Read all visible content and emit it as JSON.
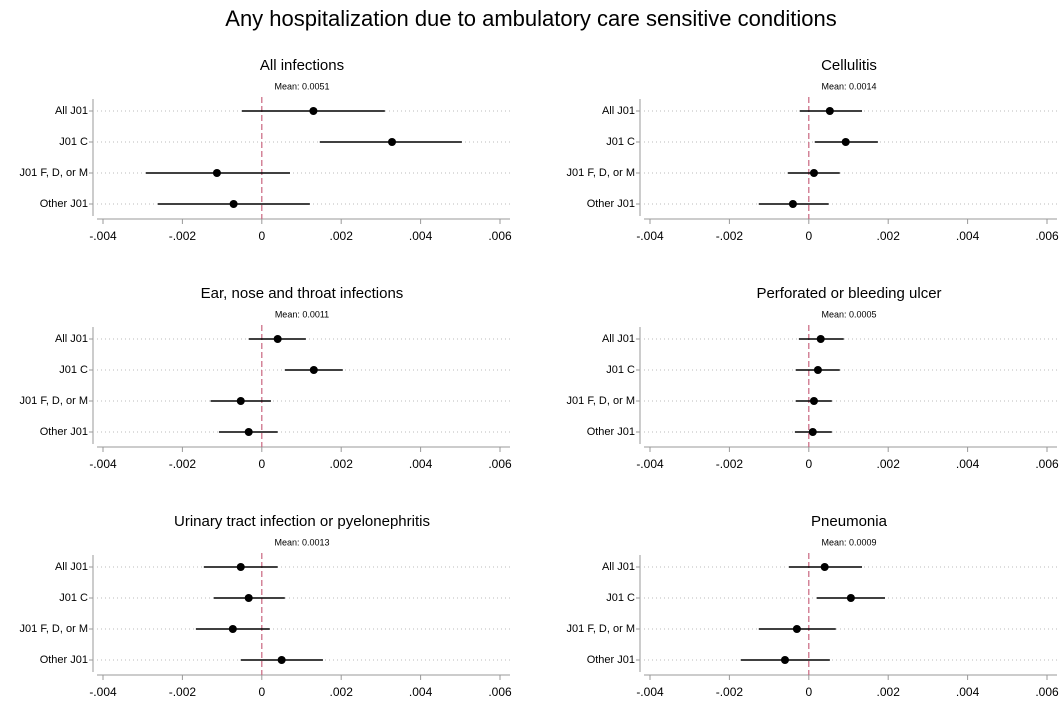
{
  "title": "Any hospitalization due to ambulatory care sensitive conditions",
  "chart_data": [
    {
      "type": "coefplot",
      "title": "All infections",
      "subtitle": "Mean: 0.0051",
      "categories": [
        "All J01",
        "J01 C",
        "J01 F, D, or M",
        "Other J01"
      ],
      "values": [
        0.0013,
        0.00328,
        -0.00113,
        -0.00071
      ],
      "low": [
        -0.0005,
        0.00146,
        -0.00292,
        -0.00262
      ],
      "high": [
        0.0031,
        0.00504,
        0.00071,
        0.00121
      ],
      "color": "#000000",
      "xline": 0,
      "xline_color": "#c9657f",
      "grid": true,
      "xlim": [
        -0.004,
        0.006
      ],
      "xticks": [
        {
          "value": -0.004,
          "label": "-.004"
        },
        {
          "value": -0.002,
          "label": "-.002"
        },
        0,
        {
          "value": 0.002,
          "label": ".002"
        },
        {
          "value": 0.004,
          "label": ".004"
        },
        {
          "value": 0.006,
          "label": ".006"
        }
      ]
    },
    {
      "type": "coefplot",
      "title": "Cellulitis",
      "subtitle": "Mean: 0.0014",
      "categories": [
        "All J01",
        "J01 C",
        "J01 F, D, or M",
        "Other J01"
      ],
      "values": [
        0.00053,
        0.00093,
        0.00013,
        -0.0004
      ],
      "low": [
        -0.00023,
        0.00015,
        -0.00053,
        -0.00126
      ],
      "high": [
        0.00134,
        0.00174,
        0.00078,
        0.0005
      ],
      "color": "#000000",
      "xline": 0,
      "xline_color": "#c9657f",
      "grid": true,
      "xlim": [
        -0.004,
        0.006
      ],
      "xticks": [
        {
          "value": -0.004,
          "label": "-.004"
        },
        {
          "value": -0.002,
          "label": "-.002"
        },
        0,
        {
          "value": 0.002,
          "label": ".002"
        },
        {
          "value": 0.004,
          "label": ".004"
        },
        {
          "value": 0.006,
          "label": ".006"
        }
      ]
    },
    {
      "type": "coefplot",
      "title": "Ear, nose and throat infections",
      "subtitle": "Mean: 0.0011",
      "categories": [
        "All J01",
        "J01 C",
        "J01 F, D, or M",
        "Other J01"
      ],
      "values": [
        0.0004,
        0.00131,
        -0.00053,
        -0.00033
      ],
      "low": [
        -0.00033,
        0.00058,
        -0.00129,
        -0.00108
      ],
      "high": [
        0.00111,
        0.00204,
        0.00023,
        0.0004
      ],
      "color": "#000000",
      "xline": 0,
      "xline_color": "#c9657f",
      "grid": true,
      "xlim": [
        -0.004,
        0.006
      ],
      "xticks": [
        {
          "value": -0.004,
          "label": "-.004"
        },
        {
          "value": -0.002,
          "label": "-.002"
        },
        0,
        {
          "value": 0.002,
          "label": ".002"
        },
        {
          "value": 0.004,
          "label": ".004"
        },
        {
          "value": 0.006,
          "label": ".006"
        }
      ]
    },
    {
      "type": "coefplot",
      "title": "Perforated or bleeding ulcer",
      "subtitle": "Mean: 0.0005",
      "categories": [
        "All J01",
        "J01 C",
        "J01 F, D, or M",
        "Other J01"
      ],
      "values": [
        0.0003,
        0.00023,
        0.00013,
        0.0001
      ],
      "low": [
        -0.00025,
        -0.00033,
        -0.00033,
        -0.00035
      ],
      "high": [
        0.00088,
        0.00078,
        0.00058,
        0.00058
      ],
      "color": "#000000",
      "xline": 0,
      "xline_color": "#c9657f",
      "grid": true,
      "xlim": [
        -0.004,
        0.006
      ],
      "xticks": [
        {
          "value": -0.004,
          "label": "-.004"
        },
        {
          "value": -0.002,
          "label": "-.002"
        },
        0,
        {
          "value": 0.002,
          "label": ".002"
        },
        {
          "value": 0.004,
          "label": ".004"
        },
        {
          "value": 0.006,
          "label": ".006"
        }
      ]
    },
    {
      "type": "coefplot",
      "title": "Urinary tract infection or pyelonephritis",
      "subtitle": "Mean: 0.0013",
      "categories": [
        "All J01",
        "J01 C",
        "J01 F, D, or M",
        "Other J01"
      ],
      "values": [
        -0.00053,
        -0.00033,
        -0.00073,
        0.0005
      ],
      "low": [
        -0.00146,
        -0.00121,
        -0.00166,
        -0.00053
      ],
      "high": [
        0.0004,
        0.00058,
        0.0002,
        0.00154
      ],
      "color": "#000000",
      "xline": 0,
      "xline_color": "#c9657f",
      "grid": true,
      "xlim": [
        -0.004,
        0.006
      ],
      "xticks": [
        {
          "value": -0.004,
          "label": "-.004"
        },
        {
          "value": -0.002,
          "label": "-.002"
        },
        0,
        {
          "value": 0.002,
          "label": ".002"
        },
        {
          "value": 0.004,
          "label": ".004"
        },
        {
          "value": 0.006,
          "label": ".006"
        }
      ]
    },
    {
      "type": "coefplot",
      "title": "Pneumonia",
      "subtitle": "Mean: 0.0009",
      "categories": [
        "All J01",
        "J01 C",
        "J01 F, D, or M",
        "Other J01"
      ],
      "values": [
        0.0004,
        0.00106,
        -0.0003,
        -0.0006
      ],
      "low": [
        -0.0005,
        0.0002,
        -0.00126,
        -0.00171
      ],
      "high": [
        0.00134,
        0.00192,
        0.00068,
        0.00053
      ],
      "color": "#000000",
      "xline": 0,
      "xline_color": "#c9657f",
      "grid": true,
      "xlim": [
        -0.004,
        0.006
      ],
      "xticks": [
        {
          "value": -0.004,
          "label": "-.004"
        },
        {
          "value": -0.002,
          "label": "-.002"
        },
        0,
        {
          "value": 0.002,
          "label": ".002"
        },
        {
          "value": 0.004,
          "label": ".004"
        },
        {
          "value": 0.006,
          "label": ".006"
        }
      ]
    }
  ]
}
